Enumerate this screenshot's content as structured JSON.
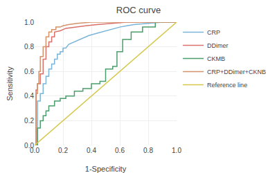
{
  "chart_data": {
    "type": "line",
    "title": "ROC curve",
    "xlabel": "1-Specificity",
    "ylabel": "Sensitivity",
    "xlim": [
      0.0,
      1.0
    ],
    "ylim": [
      0.0,
      1.0
    ],
    "xticks": [
      {
        "value": 0.0,
        "label": "0.0"
      },
      0.2,
      0.4,
      0.6,
      0.8,
      {
        "value": 1.0,
        "label": "1.0"
      }
    ],
    "yticks": [
      {
        "value": 0.0,
        "label": "0.0"
      },
      0.2,
      0.4,
      0.6,
      0.8,
      {
        "value": 1.0,
        "label": "1.0"
      }
    ],
    "grid": true,
    "legend": "right",
    "series": [
      {
        "name": "CRP",
        "color": "#7ab4d8",
        "x": [
          0.0,
          0.02,
          0.02,
          0.04,
          0.04,
          0.06,
          0.06,
          0.08,
          0.08,
          0.1,
          0.1,
          0.12,
          0.12,
          0.14,
          0.14,
          0.16,
          0.16,
          0.18,
          0.18,
          0.2,
          0.2,
          0.22,
          0.24,
          0.28,
          0.32,
          0.38,
          0.44,
          0.5,
          0.56,
          0.6,
          0.65,
          0.7,
          0.8,
          0.9,
          1.0
        ],
        "values": [
          0.0,
          0.0,
          0.36,
          0.36,
          0.42,
          0.42,
          0.5,
          0.5,
          0.56,
          0.56,
          0.62,
          0.62,
          0.66,
          0.66,
          0.7,
          0.7,
          0.74,
          0.74,
          0.76,
          0.76,
          0.79,
          0.79,
          0.82,
          0.84,
          0.86,
          0.89,
          0.91,
          0.93,
          0.95,
          0.96,
          0.97,
          0.98,
          0.99,
          1.0,
          1.0
        ]
      },
      {
        "name": "DDimer",
        "color": "#d9706a",
        "x": [
          0.0,
          0.01,
          0.01,
          0.02,
          0.02,
          0.04,
          0.04,
          0.06,
          0.06,
          0.08,
          0.08,
          0.1,
          0.1,
          0.12,
          0.12,
          0.14,
          0.14,
          0.18,
          0.22,
          0.28,
          0.36,
          0.44,
          0.55,
          0.65,
          0.8,
          1.0
        ],
        "values": [
          0.0,
          0.0,
          0.45,
          0.45,
          0.5,
          0.5,
          0.58,
          0.58,
          0.7,
          0.7,
          0.8,
          0.8,
          0.84,
          0.84,
          0.88,
          0.88,
          0.92,
          0.93,
          0.95,
          0.96,
          0.97,
          0.98,
          0.99,
          1.0,
          1.0,
          1.0
        ]
      },
      {
        "name": "CKMB",
        "color": "#4a9e6b",
        "x": [
          0.0,
          0.02,
          0.02,
          0.04,
          0.04,
          0.06,
          0.06,
          0.08,
          0.08,
          0.1,
          0.1,
          0.14,
          0.14,
          0.18,
          0.18,
          0.22,
          0.22,
          0.28,
          0.28,
          0.34,
          0.34,
          0.4,
          0.4,
          0.46,
          0.46,
          0.5,
          0.5,
          0.55,
          0.55,
          0.58,
          0.58,
          0.62,
          0.62,
          0.68,
          0.68,
          0.76,
          0.76,
          0.85,
          0.85,
          1.0
        ],
        "values": [
          0.0,
          0.0,
          0.14,
          0.14,
          0.2,
          0.2,
          0.24,
          0.24,
          0.28,
          0.28,
          0.32,
          0.32,
          0.36,
          0.36,
          0.38,
          0.38,
          0.4,
          0.4,
          0.44,
          0.44,
          0.46,
          0.46,
          0.5,
          0.5,
          0.52,
          0.52,
          0.62,
          0.62,
          0.64,
          0.64,
          0.76,
          0.76,
          0.86,
          0.86,
          0.92,
          0.92,
          0.96,
          0.96,
          1.0,
          1.0
        ]
      },
      {
        "name": "CRP+DDimer+CKNB",
        "color": "#d4926a",
        "x": [
          0.0,
          0.01,
          0.01,
          0.02,
          0.02,
          0.03,
          0.03,
          0.04,
          0.04,
          0.06,
          0.06,
          0.08,
          0.08,
          0.1,
          0.1,
          0.12,
          0.12,
          0.15,
          0.15,
          0.18,
          0.2,
          0.24,
          0.3,
          0.4,
          0.55,
          1.0
        ],
        "values": [
          0.0,
          0.0,
          0.42,
          0.42,
          0.5,
          0.5,
          0.6,
          0.6,
          0.72,
          0.72,
          0.8,
          0.8,
          0.88,
          0.88,
          0.92,
          0.92,
          0.94,
          0.94,
          0.96,
          0.96,
          0.97,
          0.98,
          0.99,
          1.0,
          1.0,
          1.0
        ]
      },
      {
        "name": "Reference line",
        "color": "#d4c84a",
        "x": [
          0,
          1
        ],
        "values": [
          0,
          1
        ]
      }
    ]
  }
}
